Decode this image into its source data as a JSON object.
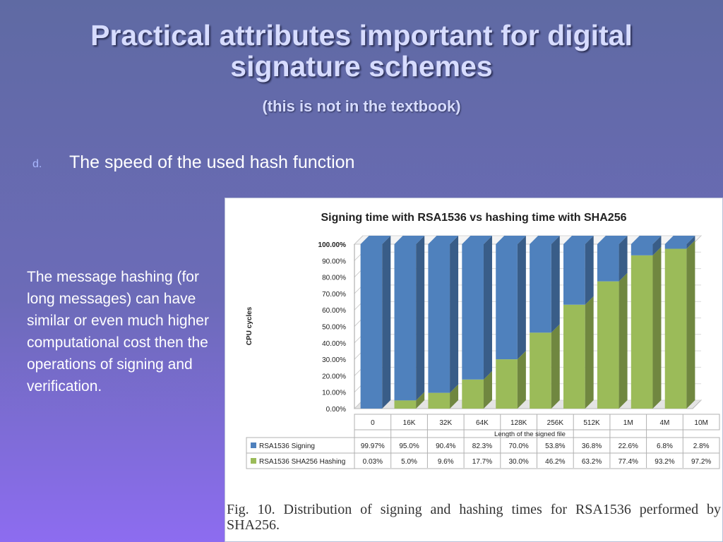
{
  "slide": {
    "title": "Practical attributes important for digital signature schemes",
    "subtitle": "(this is not in the textbook)",
    "bullet_marker": "d.",
    "bullet_text": "The speed of the used hash function",
    "side_note": "The message hashing (for long messages) can have similar or even much higher computational cost then the operations of signing and verification.",
    "caption": "Fig. 10.   Distribution of signing and hashing times for RSA1536 performed by SHA256."
  },
  "chart_data": {
    "type": "bar",
    "stacked": true,
    "title": "Signing time with RSA1536 vs hashing time with SHA256",
    "xlabel": "Length of the signed file",
    "ylabel": "CPU cycles",
    "ylim": [
      0,
      100
    ],
    "y_ticks": [
      "0.00%",
      "10.00%",
      "20.00%",
      "30.00%",
      "40.00%",
      "50.00%",
      "60.00%",
      "70.00%",
      "80.00%",
      "90.00%",
      "100.00%"
    ],
    "categories": [
      "0",
      "16K",
      "32K",
      "64K",
      "128K",
      "256K",
      "512K",
      "1M",
      "4M",
      "10M"
    ],
    "series": [
      {
        "name": "RSA1536 Signing",
        "color": "#4f81bd",
        "values": [
          99.97,
          95.0,
          90.4,
          82.3,
          70.0,
          53.8,
          36.8,
          22.6,
          6.8,
          2.8
        ],
        "labels": [
          "99.97%",
          "95.0%",
          "90.4%",
          "82.3%",
          "70.0%",
          "53.8%",
          "36.8%",
          "22.6%",
          "6.8%",
          "2.8%"
        ]
      },
      {
        "name": "RSA1536 SHA256 Hashing",
        "color": "#9bbb59",
        "values": [
          0.03,
          5.0,
          9.6,
          17.7,
          30.0,
          46.2,
          63.2,
          77.4,
          93.2,
          97.2
        ],
        "labels": [
          "0.03%",
          "5.0%",
          "9.6%",
          "17.7%",
          "30.0%",
          "46.2%",
          "63.2%",
          "77.4%",
          "93.2%",
          "97.2%"
        ]
      }
    ],
    "grid": true,
    "legend": "data-table"
  }
}
